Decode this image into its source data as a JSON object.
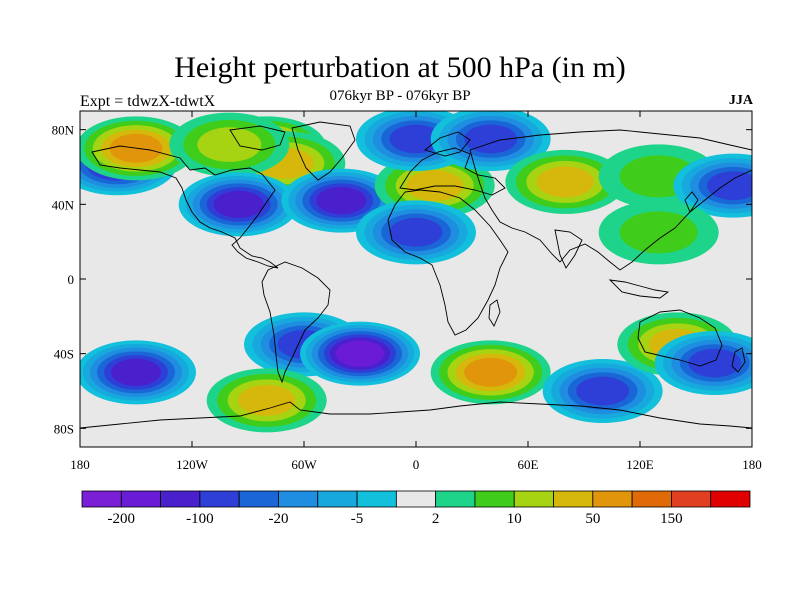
{
  "title": "Height perturbation at 500 hPa (in m)",
  "subtitle": "076kyr BP - 076kyr BP",
  "left_label": "Expt = tdwzX-tdwtX",
  "right_label": "JJA",
  "map": {
    "projection": "cylindrical-equidistant",
    "lon_range": [
      -180,
      180
    ],
    "lat_range": [
      -90,
      90
    ],
    "background": "#e8e8e8",
    "lat_ticks": [
      {
        "value": 80,
        "label": "80N"
      },
      {
        "value": 40,
        "label": "40N"
      },
      {
        "value": 0,
        "label": "0"
      },
      {
        "value": -40,
        "label": "40S"
      },
      {
        "value": -80,
        "label": "80S"
      }
    ],
    "lon_ticks": [
      {
        "value": -180,
        "label": "180"
      },
      {
        "value": -120,
        "label": "120W"
      },
      {
        "value": -60,
        "label": "60W"
      },
      {
        "value": 0,
        "label": "0"
      },
      {
        "value": 60,
        "label": "60E"
      },
      {
        "value": 120,
        "label": "120E"
      },
      {
        "value": 180,
        "label": "180"
      }
    ],
    "anomalies": [
      {
        "lon": -160,
        "lat": 62,
        "level": -6
      },
      {
        "lon": -150,
        "lat": 70,
        "level": 5
      },
      {
        "lon": -80,
        "lat": 70,
        "level": 5
      },
      {
        "lon": -70,
        "lat": 62,
        "level": 4
      },
      {
        "lon": -100,
        "lat": 72,
        "level": 3
      },
      {
        "lon": -95,
        "lat": 40,
        "level": -6
      },
      {
        "lon": -40,
        "lat": 42,
        "level": -6
      },
      {
        "lon": 10,
        "lat": 50,
        "level": 4
      },
      {
        "lon": 0,
        "lat": 25,
        "level": -5
      },
      {
        "lon": 0,
        "lat": 75,
        "level": -5
      },
      {
        "lon": 40,
        "lat": 75,
        "level": -5
      },
      {
        "lon": 80,
        "lat": 52,
        "level": 4
      },
      {
        "lon": 130,
        "lat": 55,
        "level": 2
      },
      {
        "lon": 170,
        "lat": 50,
        "level": -5
      },
      {
        "lon": 130,
        "lat": 25,
        "level": 2
      },
      {
        "lon": -60,
        "lat": -35,
        "level": -5
      },
      {
        "lon": -30,
        "lat": -40,
        "level": -7
      },
      {
        "lon": 40,
        "lat": -50,
        "level": 5
      },
      {
        "lon": -150,
        "lat": -50,
        "level": -6
      },
      {
        "lon": -80,
        "lat": -65,
        "level": 4
      },
      {
        "lon": 100,
        "lat": -60,
        "level": -5
      },
      {
        "lon": 140,
        "lat": -35,
        "level": 4
      },
      {
        "lon": 160,
        "lat": -45,
        "level": -5
      }
    ]
  },
  "colorbar": {
    "colors": [
      "#7b1fd6",
      "#6a1bd6",
      "#4a20cc",
      "#2e3fd8",
      "#1a66d6",
      "#1f8de0",
      "#17a8dd",
      "#12c0dc",
      "#e8e8e8",
      "#1dd48a",
      "#3fcc1a",
      "#a6d412",
      "#d6b80c",
      "#e0950a",
      "#e06a08",
      "#e04020",
      "#e00000"
    ],
    "labels": [
      {
        "after_index": 0,
        "text": "-200"
      },
      {
        "after_index": 2,
        "text": "-100"
      },
      {
        "after_index": 4,
        "text": "-20"
      },
      {
        "after_index": 6,
        "text": "-5"
      },
      {
        "after_index": 8,
        "text": "2"
      },
      {
        "after_index": 10,
        "text": "10"
      },
      {
        "after_index": 12,
        "text": "50"
      },
      {
        "after_index": 14,
        "text": "150"
      }
    ]
  }
}
